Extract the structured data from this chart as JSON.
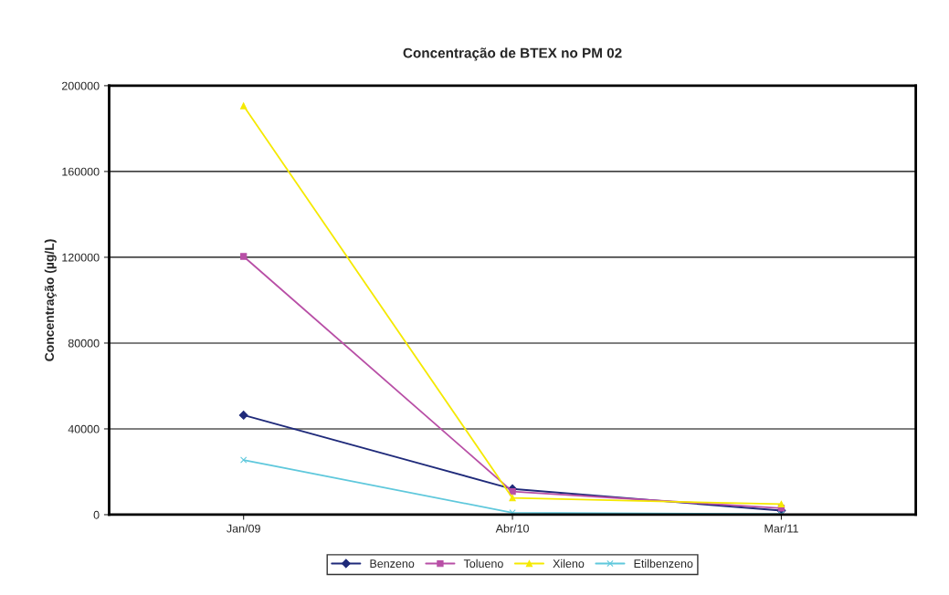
{
  "chart_data": {
    "type": "line",
    "title": "Concentração de BTEX no PM 02",
    "ylabel": "Concentração (µg/L)",
    "categories": [
      "Jan/09",
      "Abr/10",
      "Mar/11"
    ],
    "series": [
      {
        "name": "Benzeno",
        "color": "#1f2a7a",
        "marker": "diamond",
        "values": [
          46400,
          12000,
          1900
        ]
      },
      {
        "name": "Tolueno",
        "color": "#b84fa6",
        "marker": "square",
        "values": [
          120400,
          10800,
          3000
        ]
      },
      {
        "name": "Xileno",
        "color": "#f5e900",
        "marker": "triangle",
        "values": [
          190600,
          7800,
          4900
        ]
      },
      {
        "name": "Etilbenzeno",
        "color": "#5fc8dc",
        "marker": "cross",
        "values": [
          25500,
          900,
          200
        ]
      }
    ],
    "ylim": [
      0,
      200000
    ],
    "yticks": [
      0,
      40000,
      80000,
      120000,
      160000,
      200000
    ],
    "grid": "y",
    "legend": "bottom",
    "line_style": "solid"
  }
}
